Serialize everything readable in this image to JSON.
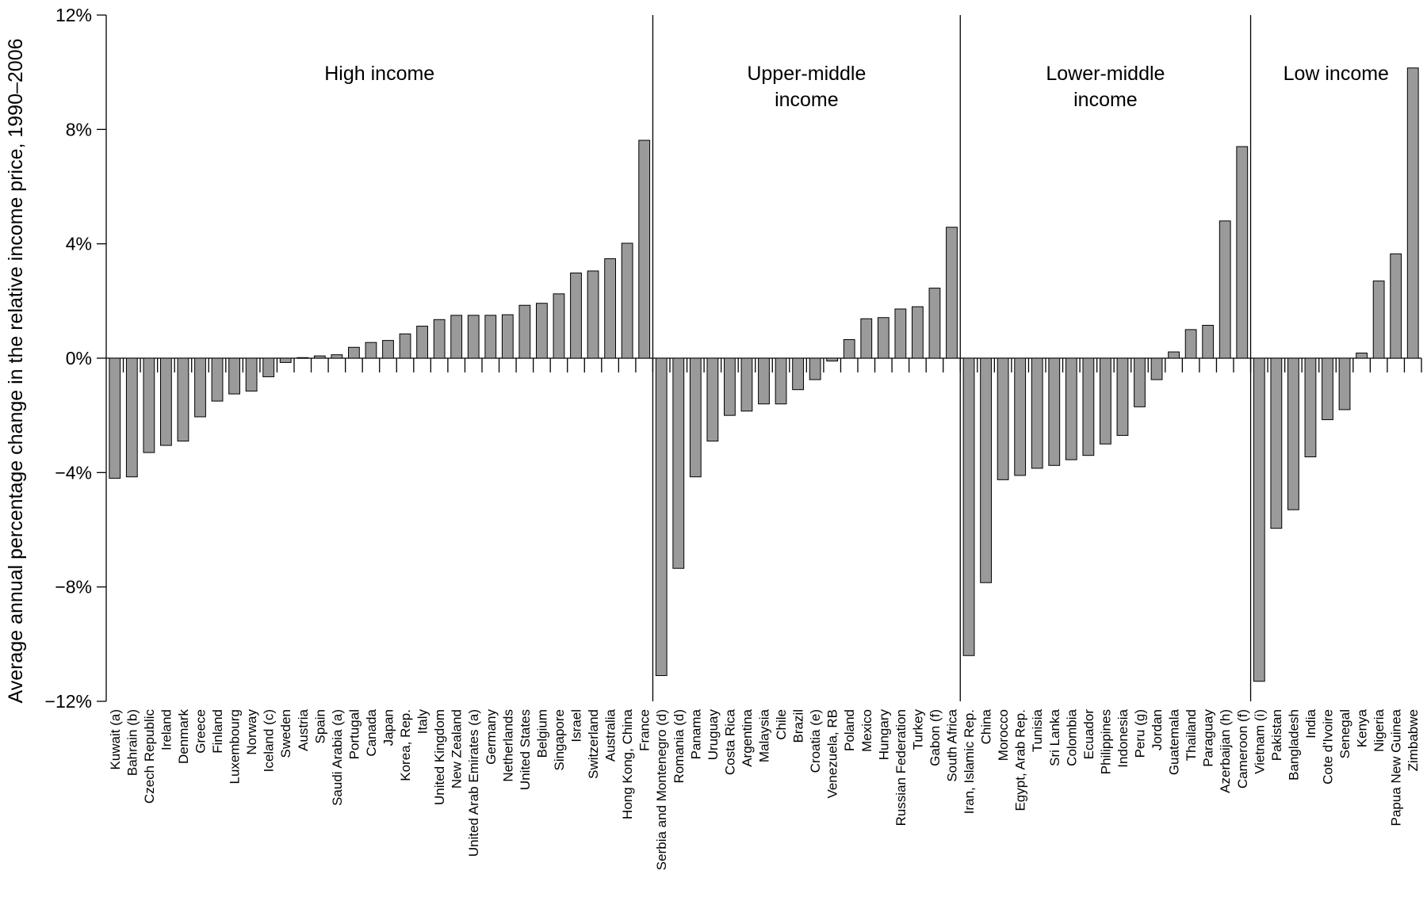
{
  "chart_data": {
    "type": "bar",
    "title": "",
    "xlabel": "",
    "ylabel": "Average annual percentage change in the relative income price, 1990–2006",
    "ylim": [
      -12,
      12
    ],
    "yticks": [
      12,
      8,
      4,
      0,
      -4,
      -8,
      -12
    ],
    "ytick_labels": [
      "12%",
      "8%",
      "4%",
      "0%",
      "−4%",
      "−8%",
      "−12%"
    ],
    "bar_color": "#9a9a9a",
    "groups": [
      {
        "label_lines": [
          "High income"
        ],
        "categories": [
          "Kuwait (a)",
          "Bahrain (b)",
          "Czech Republic",
          "Ireland",
          "Denmark",
          "Greece",
          "Finland",
          "Luxembourg",
          "Norway",
          "Iceland (c)",
          "Sweden",
          "Austria",
          "Spain",
          "Saudi Arabia (a)",
          "Portugal",
          "Canada",
          "Japan",
          "Korea, Rep.",
          "Italy",
          "United Kingdom",
          "New Zealand",
          "United Arab Emirates (a)",
          "Germany",
          "Netherlands",
          "United States",
          "Belgium",
          "Singapore",
          "Israel",
          "Switzerland",
          "Australia",
          "Hong Kong, China",
          "France"
        ],
        "values": [
          -4.2,
          -4.15,
          -3.3,
          -3.05,
          -2.9,
          -2.05,
          -1.5,
          -1.25,
          -1.15,
          -0.65,
          -0.15,
          0.02,
          0.08,
          0.12,
          0.38,
          0.55,
          0.62,
          0.85,
          1.12,
          1.35,
          1.5,
          1.5,
          1.5,
          1.52,
          1.85,
          1.92,
          2.25,
          2.98,
          3.05,
          3.48,
          4.02,
          7.62
        ]
      },
      {
        "label_lines": [
          "Upper-middle",
          "income"
        ],
        "categories": [
          "Serbia and Montenegro (d)",
          "Romania (d)",
          "Panama",
          "Uruguay",
          "Costa Rica",
          "Argentina",
          "Malaysia",
          "Chile",
          "Brazil",
          "Croatia (e)",
          "Venezuela, RB",
          "Poland",
          "Mexico",
          "Hungary",
          "Russian Federation",
          "Turkey",
          "Gabon (f)",
          "South Africa"
        ],
        "values": [
          -11.1,
          -7.35,
          -4.15,
          -2.9,
          -2.0,
          -1.85,
          -1.6,
          -1.6,
          -1.1,
          -0.75,
          -0.1,
          0.65,
          1.38,
          1.42,
          1.72,
          1.8,
          2.45,
          4.58
        ]
      },
      {
        "label_lines": [
          "Lower-middle",
          "income"
        ],
        "categories": [
          "Iran, Islamic Rep.",
          "China",
          "Morocco",
          "Egypt, Arab Rep.",
          "Tunisia",
          "Sri Lanka",
          "Colombia",
          "Ecuador",
          "Philippines",
          "Indonesia",
          "Peru (g)",
          "Jordan",
          "Guatemala",
          "Thailand",
          "Paraguay",
          "Azerbaijan (h)",
          "Cameroon (f)"
        ],
        "values": [
          -10.4,
          -7.85,
          -4.25,
          -4.1,
          -3.85,
          -3.75,
          -3.55,
          -3.4,
          -3.0,
          -2.7,
          -1.7,
          -0.75,
          0.22,
          1.0,
          1.15,
          4.8,
          7.4
        ]
      },
      {
        "label_lines": [
          "Low income"
        ],
        "categories": [
          "Vietnam (i)",
          "Pakistan",
          "Bangladesh",
          "India",
          "Cote d'Ivoire",
          "Senegal",
          "Kenya",
          "Nigeria",
          "Papua New Guinea",
          "Zimbabwe"
        ],
        "values": [
          -11.3,
          -5.95,
          -5.3,
          -3.45,
          -2.15,
          -1.8,
          0.18,
          2.7,
          3.65,
          10.15
        ]
      }
    ]
  }
}
